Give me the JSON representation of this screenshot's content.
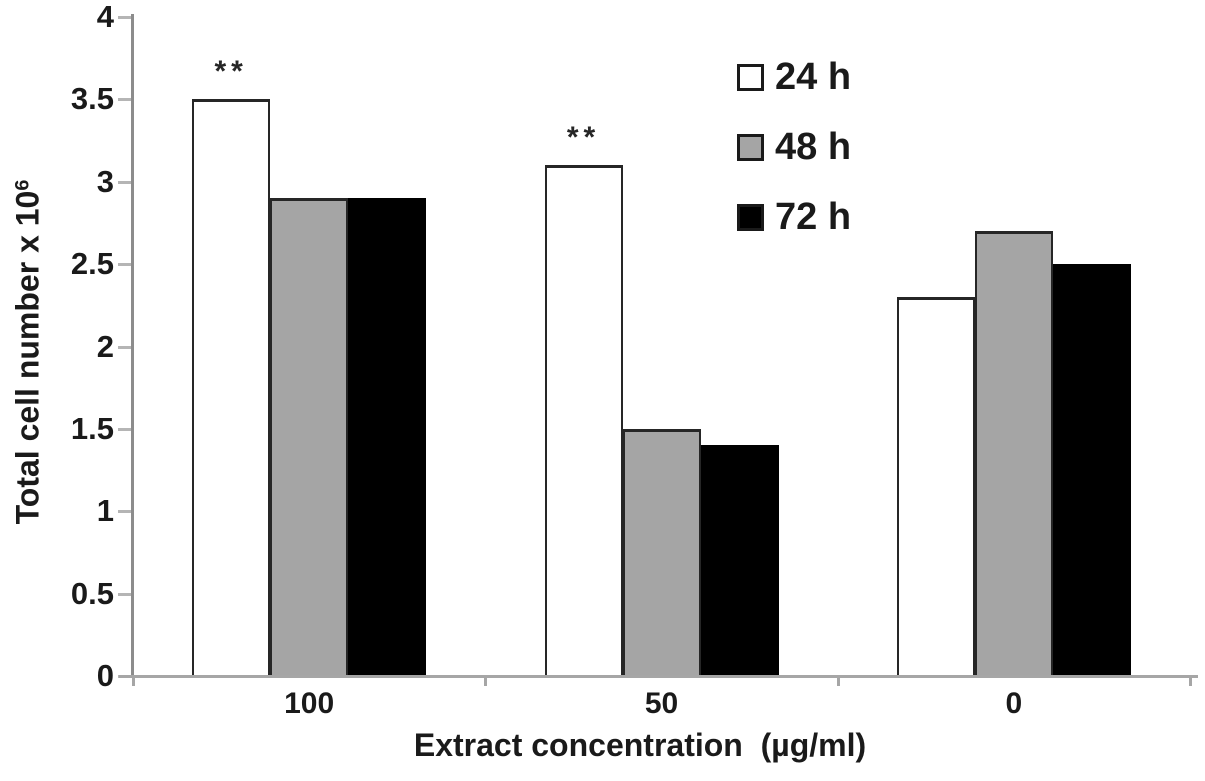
{
  "chart_data": {
    "type": "bar",
    "title": "",
    "xlabel": "Extract concentration  (µg/ml)",
    "ylabel": "Total cell number x 10",
    "ylabel_superscript": "6",
    "categories": [
      "100",
      "50",
      "0"
    ],
    "series": [
      {
        "name": "24 h",
        "color": "#ffffff",
        "border": "#262626",
        "values": [
          3.5,
          3.1,
          2.3
        ]
      },
      {
        "name": "48 h",
        "color": "#a5a5a5",
        "border": "#262626",
        "values": [
          2.9,
          1.5,
          2.7
        ]
      },
      {
        "name": "72 h",
        "color": "#000000",
        "border": "#000000",
        "values": [
          2.9,
          1.4,
          2.5
        ]
      }
    ],
    "ylim": [
      0,
      4
    ],
    "ytick_step": 0.5,
    "grid": false,
    "legend_position": "top-right",
    "annotations": [
      {
        "category": "100",
        "series": "24 h",
        "label": "**"
      },
      {
        "category": "50",
        "series": "24 h",
        "label": "**"
      }
    ]
  },
  "style": {
    "background": "#ffffff",
    "text_color": "#1a1a1a",
    "y_axis_line_color": "#8c8c8c",
    "x_axis_line_color": "#a6a6a6",
    "y_tick_color": "#b5b5b5",
    "x_tick_color": "#a6a6a6"
  }
}
